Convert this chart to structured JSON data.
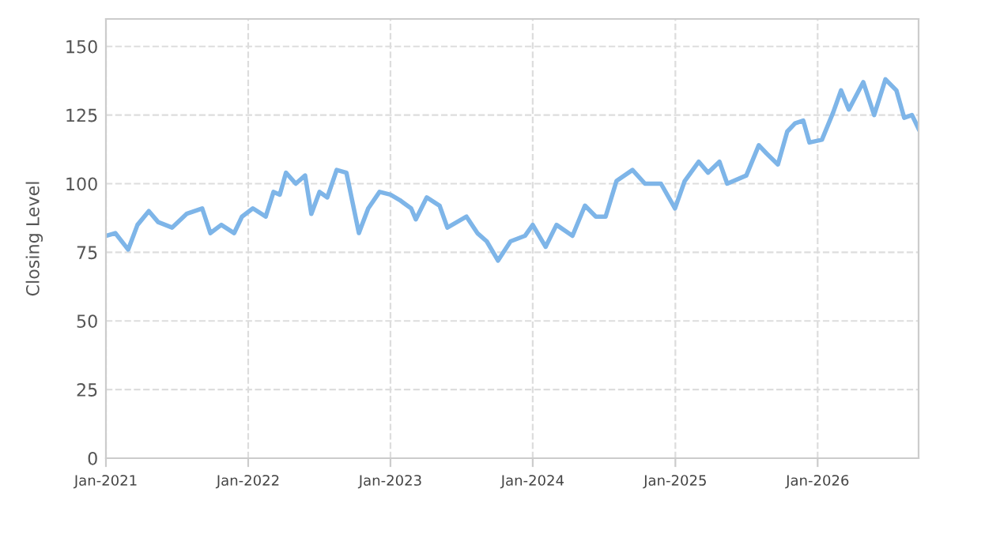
{
  "chart_data": {
    "type": "line",
    "ylabel": "Closing Level",
    "x": [
      "2021-01-01",
      "2021-01-25",
      "2021-02-27",
      "2021-03-23",
      "2021-04-21",
      "2021-05-15",
      "2021-06-20",
      "2021-07-27",
      "2021-09-05",
      "2021-09-26",
      "2021-10-24",
      "2021-11-26",
      "2021-12-16",
      "2022-01-13",
      "2022-02-15",
      "2022-03-07",
      "2022-03-23",
      "2022-04-08",
      "2022-05-03",
      "2022-05-27",
      "2022-06-12",
      "2022-07-03",
      "2022-07-23",
      "2022-08-16",
      "2022-09-10",
      "2022-10-12",
      "2022-11-05",
      "2022-12-04",
      "2023-01-01",
      "2023-01-25",
      "2023-02-23",
      "2023-03-07",
      "2023-04-04",
      "2023-05-07",
      "2023-05-27",
      "2023-07-15",
      "2023-08-12",
      "2023-09-05",
      "2023-10-04",
      "2023-11-05",
      "2023-12-12",
      "2024-01-01",
      "2024-02-03",
      "2024-03-02",
      "2024-04-12",
      "2024-05-14",
      "2024-06-11",
      "2024-07-06",
      "2024-08-03",
      "2024-09-13",
      "2024-10-15",
      "2024-11-25",
      "2024-12-31",
      "2025-01-25",
      "2025-03-02",
      "2025-03-26",
      "2025-04-24",
      "2025-05-14",
      "2025-07-02",
      "2025-08-03",
      "2025-08-23",
      "2025-09-21",
      "2025-10-15",
      "2025-11-04",
      "2025-11-25",
      "2025-12-11",
      "2026-01-12",
      "2026-02-10",
      "2026-03-02",
      "2026-03-22",
      "2026-04-28",
      "2026-05-26",
      "2026-06-24",
      "2026-07-22",
      "2026-08-11",
      "2026-08-31",
      "2026-09-17"
    ],
    "series": [
      {
        "color": "#7eb5e8",
        "values": [
          81,
          82,
          76,
          85,
          90,
          86,
          84,
          89,
          91,
          82,
          85,
          82,
          88,
          91,
          88,
          97,
          96,
          104,
          100,
          103,
          89,
          97,
          95,
          105,
          104,
          82,
          91,
          97,
          96,
          94,
          91,
          87,
          95,
          92,
          84,
          88,
          82,
          79,
          72,
          79,
          81,
          85,
          77,
          85,
          81,
          92,
          88,
          88,
          101,
          105,
          100,
          100,
          91,
          101,
          108,
          104,
          108,
          100,
          103,
          114,
          111,
          107,
          119,
          122,
          123,
          115,
          116,
          126,
          134,
          127,
          137,
          125,
          138,
          134,
          124,
          125,
          120
        ]
      }
    ],
    "xlim": [
      "2021-01-01",
      "2026-09-17"
    ],
    "xticks": [
      {
        "value": "2021-01-01",
        "label": "Jan-2021"
      },
      {
        "value": "2022-01-01",
        "label": "Jan-2022"
      },
      {
        "value": "2023-01-01",
        "label": "Jan-2023"
      },
      {
        "value": "2024-01-01",
        "label": "Jan-2024"
      },
      {
        "value": "2025-01-01",
        "label": "Jan-2025"
      },
      {
        "value": "2026-01-01",
        "label": "Jan-2026"
      }
    ],
    "ylim": [
      0,
      160
    ],
    "yticks": [
      0,
      25,
      50,
      75,
      100,
      125,
      150
    ],
    "grid": true
  }
}
